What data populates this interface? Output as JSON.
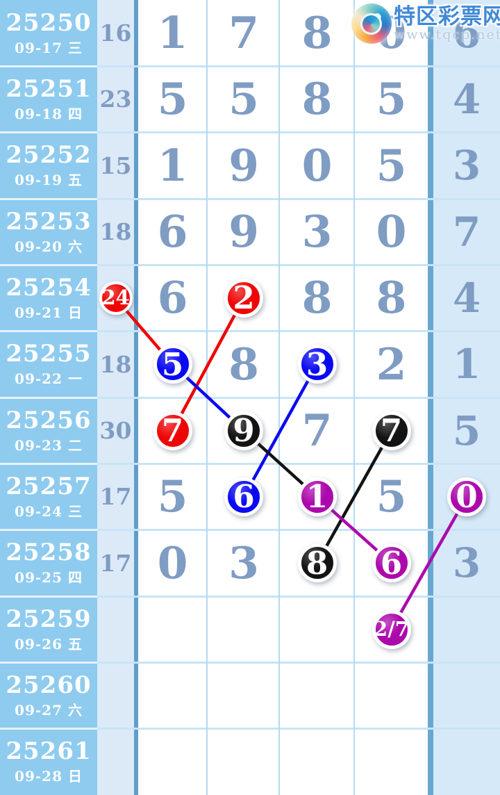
{
  "site": {
    "name": "特区彩票网",
    "url": "www.tqcp.net"
  },
  "colors": {
    "red": "#ee0606",
    "blue": "#0a0af2",
    "black": "#131313",
    "purple": "#ac09ac",
    "digit": "#7f9cc3",
    "panel_blue": "#8ecbef",
    "sum_band": "#dceaf8",
    "last_band": "#d6e9f8",
    "separator": "#5f9ecb"
  },
  "chart_data": {
    "type": "table",
    "rows": [
      {
        "draw": "25250",
        "date": "09-17 三",
        "sum": {
          "v": "16"
        },
        "digits": [
          {
            "v": "1"
          },
          {
            "v": "7"
          },
          {
            "v": "8"
          },
          {
            "v": "0"
          }
        ],
        "last": {
          "v": "6"
        }
      },
      {
        "draw": "25251",
        "date": "09-18 四",
        "sum": {
          "v": "23"
        },
        "digits": [
          {
            "v": "5"
          },
          {
            "v": "5"
          },
          {
            "v": "8"
          },
          {
            "v": "5"
          }
        ],
        "last": {
          "v": "4"
        }
      },
      {
        "draw": "25252",
        "date": "09-19 五",
        "sum": {
          "v": "15"
        },
        "digits": [
          {
            "v": "1"
          },
          {
            "v": "9"
          },
          {
            "v": "0"
          },
          {
            "v": "5"
          }
        ],
        "last": {
          "v": "3"
        }
      },
      {
        "draw": "25253",
        "date": "09-20 六",
        "sum": {
          "v": "18"
        },
        "digits": [
          {
            "v": "6"
          },
          {
            "v": "9"
          },
          {
            "v": "3"
          },
          {
            "v": "0"
          }
        ],
        "last": {
          "v": "7"
        }
      },
      {
        "draw": "25254",
        "date": "09-21 日",
        "sum": {
          "v": "24",
          "circle": "red"
        },
        "digits": [
          {
            "v": "6"
          },
          {
            "v": "2",
            "circle": "red"
          },
          {
            "v": "8"
          },
          {
            "v": "8"
          }
        ],
        "last": {
          "v": "4"
        }
      },
      {
        "draw": "25255",
        "date": "09-22 一",
        "sum": {
          "v": "18"
        },
        "digits": [
          {
            "v": "5",
            "circle": "blue"
          },
          {
            "v": "8"
          },
          {
            "v": "3",
            "circle": "blue"
          },
          {
            "v": "2"
          }
        ],
        "last": {
          "v": "1"
        }
      },
      {
        "draw": "25256",
        "date": "09-23 二",
        "sum": {
          "v": "30"
        },
        "digits": [
          {
            "v": "7",
            "circle": "red"
          },
          {
            "v": "9",
            "circle": "black"
          },
          {
            "v": "7"
          },
          {
            "v": "7",
            "circle": "black"
          }
        ],
        "last": {
          "v": "5"
        }
      },
      {
        "draw": "25257",
        "date": "09-24 三",
        "sum": {
          "v": "17"
        },
        "digits": [
          {
            "v": "5"
          },
          {
            "v": "6",
            "circle": "blue"
          },
          {
            "v": "1",
            "circle": "purple"
          },
          {
            "v": "5"
          }
        ],
        "last": {
          "v": "0",
          "circle": "purple"
        }
      },
      {
        "draw": "25258",
        "date": "09-25 四",
        "sum": {
          "v": "17"
        },
        "digits": [
          {
            "v": "0"
          },
          {
            "v": "3"
          },
          {
            "v": "8",
            "circle": "black"
          },
          {
            "v": "6",
            "circle": "purple"
          }
        ],
        "last": {
          "v": "3"
        }
      },
      {
        "draw": "25259",
        "date": "09-26 五",
        "sum": {
          "v": ""
        },
        "digits": [
          {
            "v": ""
          },
          {
            "v": ""
          },
          {
            "v": ""
          },
          {
            "v": "2/7",
            "circle": "purple"
          }
        ],
        "last": {
          "v": ""
        }
      },
      {
        "draw": "25260",
        "date": "09-27 六",
        "sum": {
          "v": ""
        },
        "digits": [
          {
            "v": ""
          },
          {
            "v": ""
          },
          {
            "v": ""
          },
          {
            "v": ""
          }
        ],
        "last": {
          "v": ""
        }
      },
      {
        "draw": "25261",
        "date": "09-28 日",
        "sum": {
          "v": ""
        },
        "digits": [
          {
            "v": ""
          },
          {
            "v": ""
          },
          {
            "v": ""
          },
          {
            "v": ""
          }
        ],
        "last": {
          "v": ""
        }
      }
    ],
    "connections": [
      {
        "color": "red",
        "from": {
          "col": "sum",
          "row": 4
        },
        "to": {
          "col": "d0",
          "row": 5
        }
      },
      {
        "color": "red",
        "from": {
          "col": "d1",
          "row": 4
        },
        "to": {
          "col": "d0",
          "row": 6
        }
      },
      {
        "color": "blue",
        "from": {
          "col": "d0",
          "row": 5
        },
        "to": {
          "col": "d1",
          "row": 6
        }
      },
      {
        "color": "blue",
        "from": {
          "col": "d2",
          "row": 5
        },
        "to": {
          "col": "d1",
          "row": 7
        }
      },
      {
        "color": "black",
        "from": {
          "col": "d1",
          "row": 6
        },
        "to": {
          "col": "d2",
          "row": 7
        }
      },
      {
        "color": "black",
        "from": {
          "col": "d3",
          "row": 6
        },
        "to": {
          "col": "d2",
          "row": 8
        }
      },
      {
        "color": "purple",
        "from": {
          "col": "d2",
          "row": 7
        },
        "to": {
          "col": "d3",
          "row": 8
        }
      },
      {
        "color": "purple",
        "from": {
          "col": "last",
          "row": 7
        },
        "to": {
          "col": "d3",
          "row": 9
        }
      }
    ]
  }
}
